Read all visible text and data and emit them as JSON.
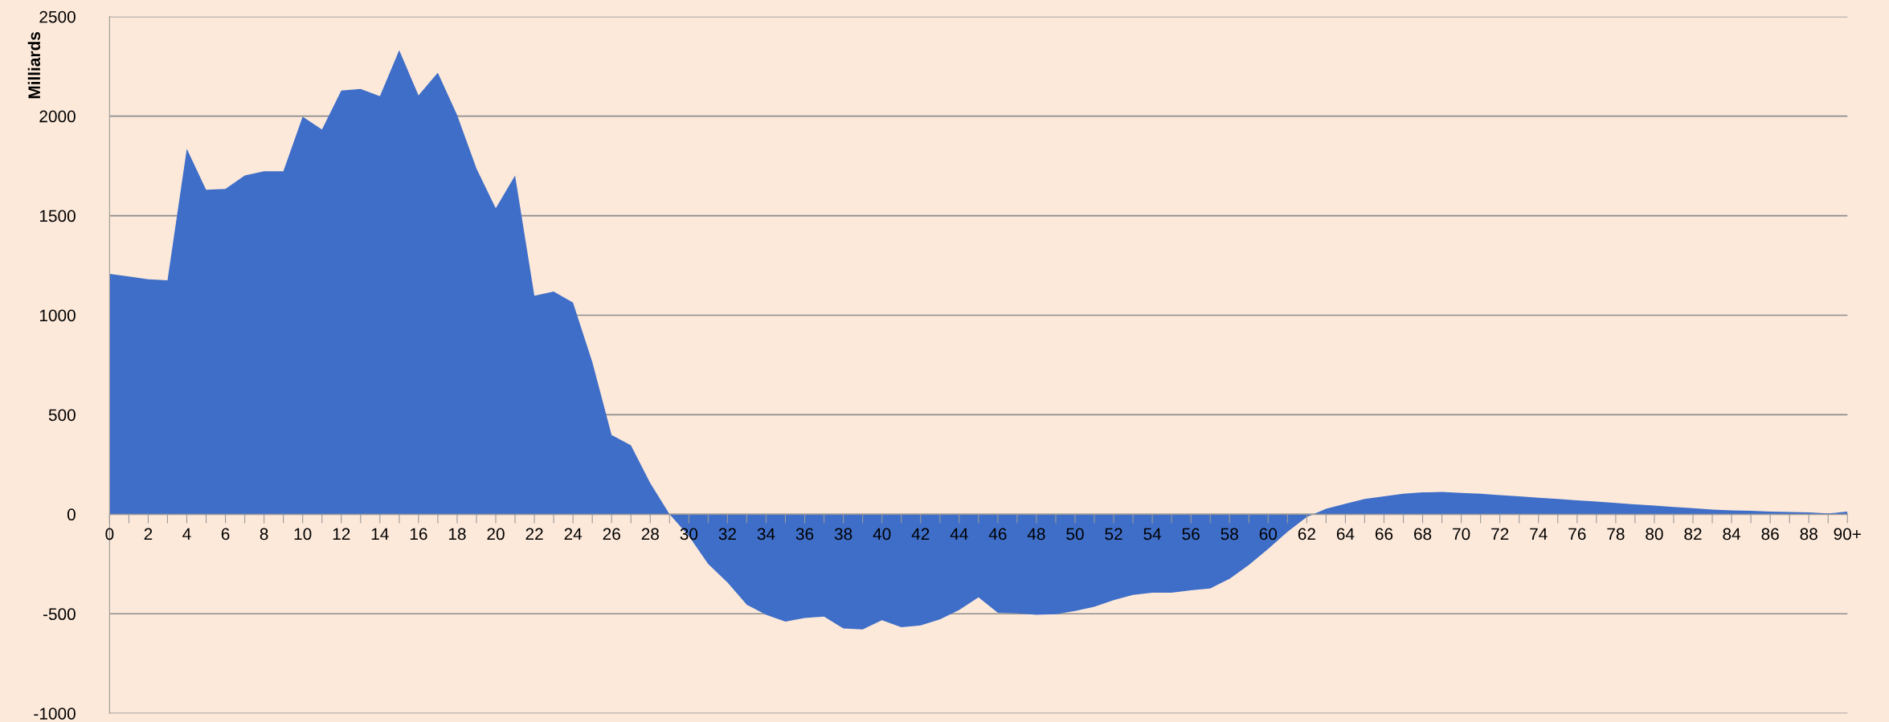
{
  "chart_data": {
    "type": "area",
    "ylabel": "Milliards",
    "categories": [
      "0",
      null,
      "2",
      null,
      "4",
      null,
      "6",
      null,
      "8",
      null,
      "10",
      null,
      "12",
      null,
      "14",
      null,
      "16",
      null,
      "18",
      null,
      "20",
      null,
      "22",
      null,
      "24",
      null,
      "26",
      null,
      "28",
      null,
      "30",
      null,
      "32",
      null,
      "34",
      null,
      "36",
      null,
      "38",
      null,
      "40",
      null,
      "42",
      null,
      "44",
      null,
      "46",
      null,
      "48",
      null,
      "50",
      null,
      "52",
      null,
      "54",
      null,
      "56",
      null,
      "58",
      null,
      "60",
      null,
      "62",
      null,
      "64",
      null,
      "66",
      null,
      "68",
      null,
      "70",
      null,
      "72",
      null,
      "74",
      null,
      "76",
      null,
      "78",
      null,
      "80",
      null,
      "82",
      null,
      "84",
      null,
      "86",
      null,
      "88",
      null,
      "90+"
    ],
    "values": [
      1208,
      1195,
      1180,
      1175,
      1836,
      1630,
      1634,
      1702,
      1723,
      1723,
      1997,
      1933,
      2129,
      2137,
      2100,
      2331,
      2104,
      2218,
      2005,
      1737,
      1537,
      1702,
      1098,
      1119,
      1063,
      765,
      398,
      346,
      157,
      0,
      -110,
      -250,
      -343,
      -454,
      -505,
      -539,
      -521,
      -514,
      -574,
      -579,
      -532,
      -567,
      -558,
      -528,
      -481,
      -417,
      -495,
      -498,
      -505,
      -502,
      -486,
      -465,
      -431,
      -405,
      -394,
      -394,
      -382,
      -373,
      -324,
      -255,
      -174,
      -88,
      -14,
      28,
      53,
      77,
      90,
      103,
      110,
      112,
      107,
      103,
      96,
      90,
      83,
      77,
      70,
      64,
      57,
      50,
      44,
      37,
      31,
      24,
      20,
      18,
      13,
      11,
      9,
      4,
      13
    ],
    "color": "#3f6ec8",
    "ylim": [
      -1000,
      2500
    ],
    "yticks": [
      -1000,
      -500,
      0,
      500,
      1000,
      1500,
      2000,
      2500
    ],
    "grid": "y",
    "legend": false
  }
}
